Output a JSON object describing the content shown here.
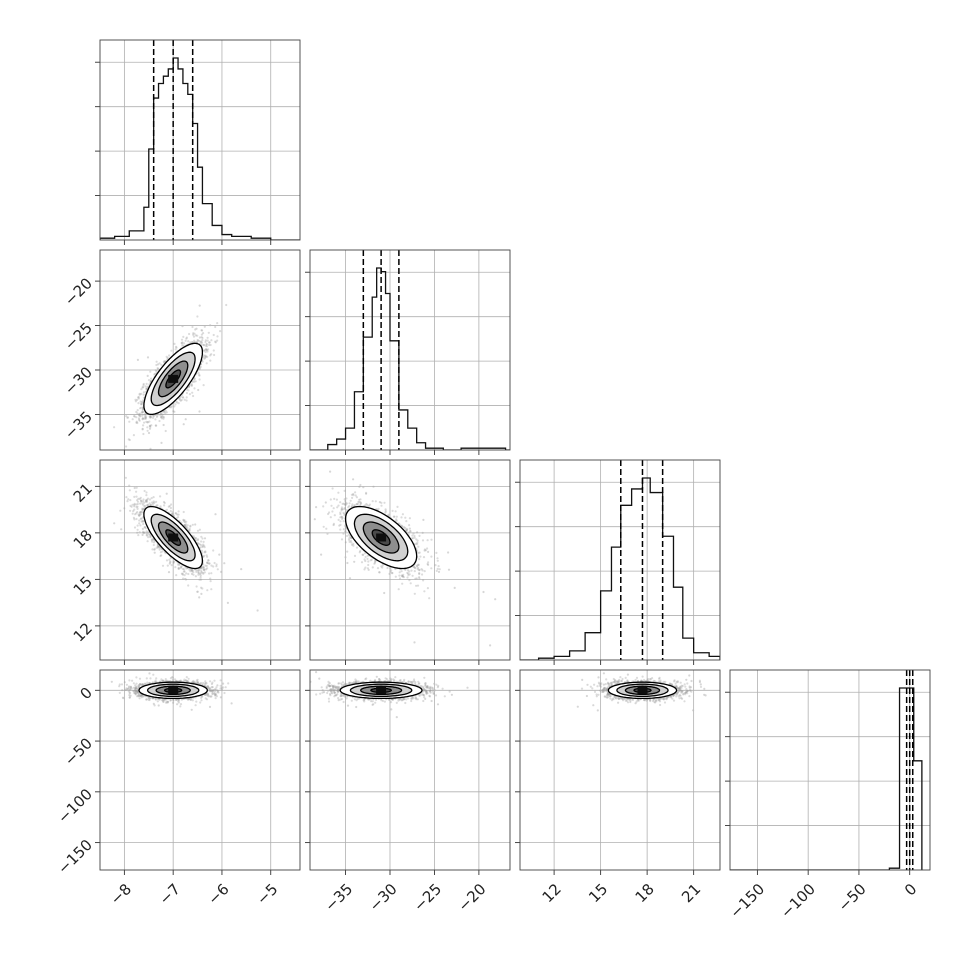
{
  "chart_data": {
    "type": "corner",
    "grid": true,
    "parameters": [
      {
        "range": [
          -8.5,
          -4.4
        ],
        "ticks": [
          -8,
          -7,
          -6,
          -5
        ],
        "tick_labels": [
          "−8",
          "−7",
          "−6",
          "−5"
        ],
        "quantiles": [
          -7.4,
          -7.0,
          -6.6
        ],
        "hist": {
          "edges": [
            -8.5,
            -8.2,
            -7.9,
            -7.6,
            -7.5,
            -7.4,
            -7.3,
            -7.2,
            -7.1,
            -7.0,
            -6.9,
            -6.8,
            -6.7,
            -6.6,
            -6.5,
            -6.4,
            -6.2,
            -6.0,
            -5.8,
            -5.4,
            -5.0,
            -4.4
          ],
          "counts": [
            1,
            2,
            5,
            18,
            50,
            78,
            86,
            90,
            94,
            100,
            94,
            86,
            80,
            64,
            40,
            20,
            8,
            3,
            2,
            1,
            0
          ]
        }
      },
      {
        "range": [
          -39.0,
          -16.5
        ],
        "ticks": [
          -35,
          -30,
          -25,
          -20
        ],
        "tick_labels": [
          "−35",
          "−30",
          "−25",
          "−20"
        ],
        "quantiles": [
          -33.0,
          -31.0,
          -29.0
        ],
        "hist": {
          "edges": [
            -39.0,
            -37.0,
            -36.0,
            -35.0,
            -34.0,
            -33.0,
            -32.0,
            -31.5,
            -31.0,
            -30.5,
            -30.0,
            -29.0,
            -28.0,
            -27.0,
            -26.0,
            -25.0,
            -24.0,
            -22.0,
            -20.0,
            -17.0,
            -16.5
          ],
          "counts": [
            0,
            3,
            6,
            12,
            32,
            62,
            84,
            100,
            98,
            86,
            60,
            22,
            12,
            4,
            1,
            1,
            0,
            1,
            1,
            0
          ]
        }
      },
      {
        "range": [
          9.8,
          22.7
        ],
        "ticks": [
          12,
          15,
          18,
          21
        ],
        "tick_labels": [
          "12",
          "15",
          "18",
          "21"
        ],
        "quantiles": [
          16.3,
          17.7,
          19.0
        ],
        "hist": {
          "edges": [
            9.8,
            11.0,
            12.0,
            13.0,
            14.0,
            15.0,
            15.7,
            16.3,
            17.0,
            17.7,
            18.2,
            19.0,
            19.7,
            20.3,
            21.0,
            22.0,
            22.7
          ],
          "counts": [
            0,
            1,
            2,
            5,
            15,
            38,
            62,
            85,
            94,
            100,
            92,
            68,
            40,
            12,
            4,
            2
          ]
        }
      },
      {
        "range": [
          -177,
          20
        ],
        "ticks": [
          -150,
          -100,
          -50,
          0
        ],
        "tick_labels": [
          "−150",
          "−100",
          "−50",
          "0"
        ],
        "quantiles": [
          -3,
          0,
          3
        ],
        "hist": {
          "edges": [
            -177,
            -20,
            -10,
            -2,
            4,
            12
          ],
          "counts": [
            0,
            1,
            100,
            100,
            60
          ]
        }
      }
    ],
    "pairs": [
      {
        "row": 1,
        "col": 0,
        "center": [
          -7.0,
          -31.0
        ],
        "sd": [
          0.3,
          2.0
        ],
        "rho": 0.75
      },
      {
        "row": 2,
        "col": 0,
        "center": [
          -7.0,
          17.7
        ],
        "sd": [
          0.3,
          1.0
        ],
        "rho": -0.75
      },
      {
        "row": 2,
        "col": 1,
        "center": [
          -31.0,
          17.7
        ],
        "sd": [
          2.0,
          1.0
        ],
        "rho": -0.6
      },
      {
        "row": 3,
        "col": 0,
        "center": [
          -7.0,
          0.0
        ],
        "sd": [
          0.35,
          4.0
        ],
        "rho": 0.0
      },
      {
        "row": 3,
        "col": 1,
        "center": [
          -31.0,
          0.0
        ],
        "sd": [
          2.3,
          4.0
        ],
        "rho": 0.0
      },
      {
        "row": 3,
        "col": 2,
        "center": [
          17.7,
          0.0
        ],
        "sd": [
          1.1,
          4.0
        ],
        "rho": 0.0
      }
    ],
    "contour_levels_sigma": [
      0.5,
      1.0,
      1.5,
      2.0
    ]
  }
}
